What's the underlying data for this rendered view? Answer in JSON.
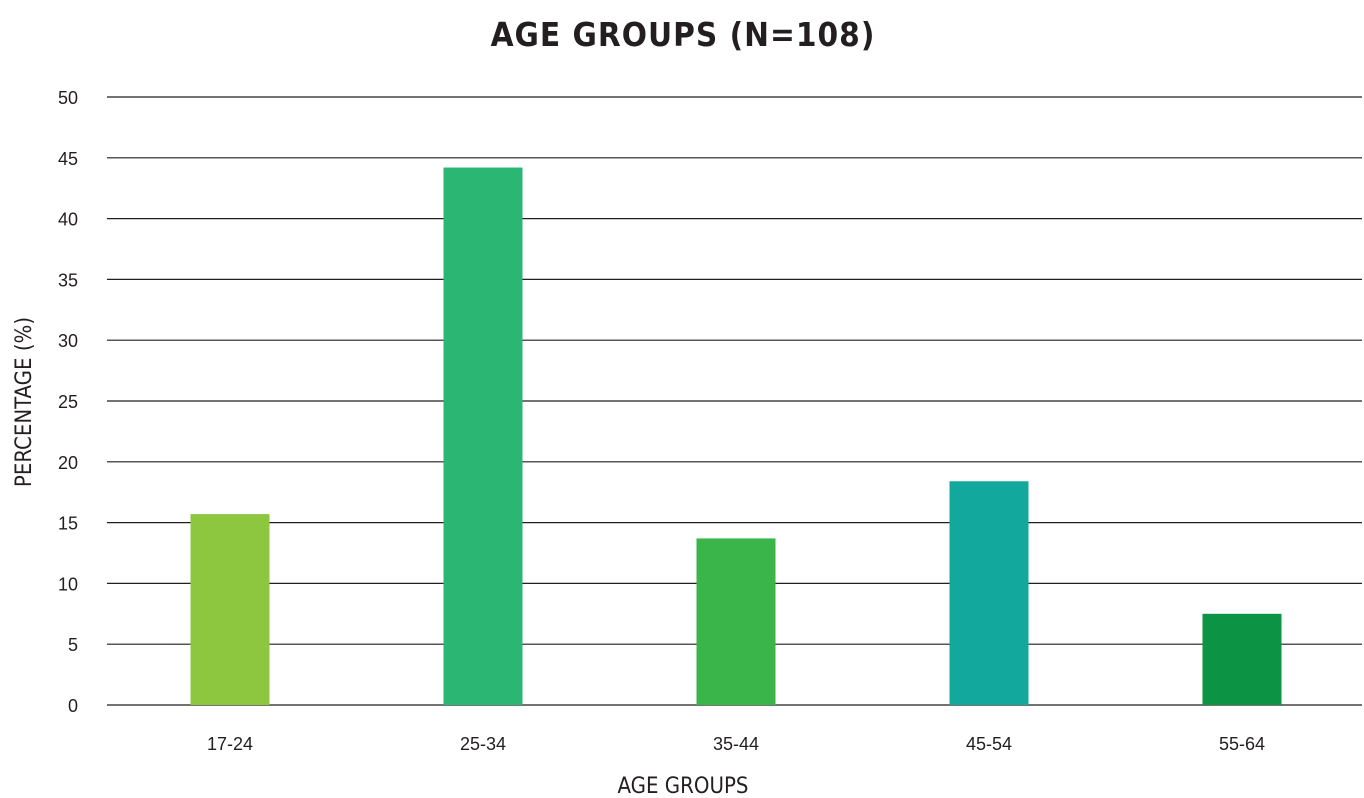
{
  "chart_data": {
    "type": "bar",
    "title": "AGE GROUPS (N=108)",
    "xlabel": "AGE GROUPS",
    "ylabel": "PERCENTAGE (%)",
    "ylim": [
      0,
      50
    ],
    "yticks": [
      "0",
      "5",
      "10",
      "15",
      "20",
      "25",
      "30",
      "35",
      "40",
      "45",
      "50"
    ],
    "grid": true,
    "categories": [
      "17-24",
      "25-34",
      "35-44",
      "45-54",
      "55-64"
    ],
    "values": [
      15.7,
      44.2,
      13.7,
      18.4,
      7.5
    ],
    "colors": [
      "#8dc63f",
      "#2bb673",
      "#39b54a",
      "#13a89e",
      "#0c9444"
    ]
  }
}
